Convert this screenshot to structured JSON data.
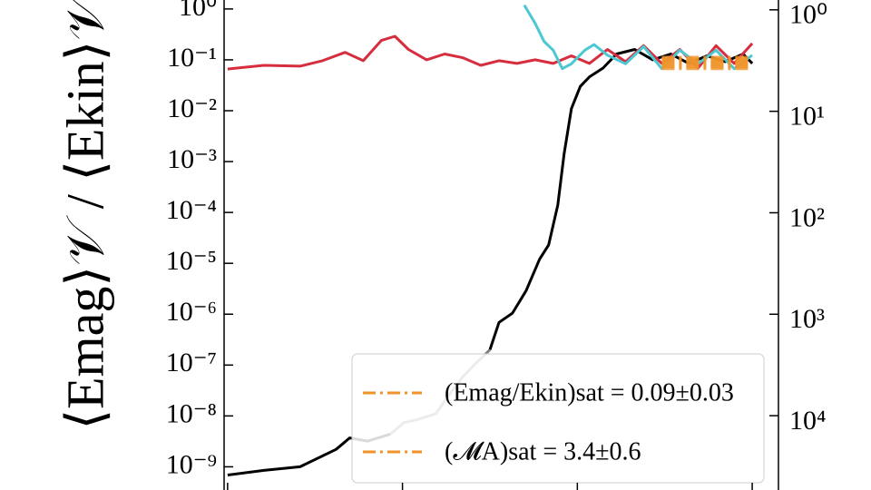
{
  "chart_data": {
    "type": "line",
    "ylabel": "⟨Emag⟩𝒱 / ⟨Ekin⟩𝒱",
    "xlim": [
      -0.02,
      3.15
    ],
    "xticks": [
      0,
      1,
      2,
      3
    ],
    "ylim": [
      3.5e-10,
      1.5
    ],
    "ylog": true,
    "yticks": [
      {
        "value": 1,
        "label": "10⁰"
      },
      {
        "value": 0.1,
        "label": "10⁻¹"
      },
      {
        "value": 0.01,
        "label": "10⁻²"
      },
      {
        "value": 0.001,
        "label": "10⁻³"
      },
      {
        "value": 0.0001,
        "label": "10⁻⁴"
      },
      {
        "value": 1e-05,
        "label": "10⁻⁵"
      },
      {
        "value": 1e-06,
        "label": "10⁻⁶"
      },
      {
        "value": 1e-07,
        "label": "10⁻⁷"
      },
      {
        "value": 1e-08,
        "label": "10⁻⁸"
      },
      {
        "value": 1e-09,
        "label": "10⁻⁹"
      }
    ],
    "y2lim": [
      0.8,
      54000
    ],
    "y2log": true,
    "y2_inverted": true,
    "y2ticks": [
      {
        "value": 1,
        "label": "10⁰"
      },
      {
        "value": 10,
        "label": "10¹"
      },
      {
        "value": 100,
        "label": "10²"
      },
      {
        "value": 1000,
        "label": "10³"
      },
      {
        "value": 10000,
        "label": "10⁴"
      }
    ],
    "series": [
      {
        "color": "#000000",
        "x": [
          0,
          0.207,
          0.414,
          0.621,
          0.698,
          0.802,
          0.931,
          1.009,
          1.086,
          1.19,
          1.267,
          1.345,
          1.422,
          1.5,
          1.552,
          1.629,
          1.707,
          1.784,
          1.836,
          1.888,
          1.924,
          1.966,
          2.017,
          2.069,
          2.147,
          2.224,
          2.328,
          2.431,
          2.534,
          2.638,
          2.741,
          2.845,
          2.948,
          3.0
        ],
        "values": [
          6.9e-10,
          8.5e-10,
          1e-09,
          2.2e-09,
          3.7e-09,
          3.2e-09,
          4.4e-09,
          null,
          null,
          null,
          null,
          null,
          null,
          2e-07,
          6.9e-07,
          1.05e-06,
          2.9e-06,
          1.2e-05,
          2.3e-05,
          0.00014,
          0.0014,
          0.011,
          0.03,
          0.046,
          0.069,
          0.13,
          0.16,
          0.1,
          0.13,
          0.085,
          0.12,
          0.092,
          0.13,
          0.085
        ]
      },
      {
        "color": "#808080",
        "x": [
          0.931,
          1.009,
          1.086,
          1.19,
          1.267,
          1.345,
          1.422,
          1.5
        ],
        "values": [
          4.4e-09,
          7.4e-09,
          8.5e-09,
          1.1e-08,
          2.6e-08,
          5.9e-08,
          1.1e-07,
          2e-07
        ]
      },
      {
        "color": "#d62d3f",
        "x": [
          0,
          0.207,
          0.414,
          0.543,
          0.672,
          0.776,
          0.879,
          0.957,
          1.034,
          1.138,
          1.241,
          1.345,
          1.448,
          1.552,
          1.655,
          1.759,
          1.862,
          1.966,
          2.069,
          2.172,
          2.276,
          2.379,
          2.483,
          2.586,
          2.69,
          2.793,
          2.897,
          3.0
        ],
        "values": [
          0.066,
          0.078,
          0.075,
          0.096,
          0.14,
          0.096,
          0.24,
          0.29,
          0.16,
          0.1,
          0.13,
          0.11,
          0.078,
          0.096,
          0.085,
          0.1,
          0.085,
          0.12,
          0.085,
          0.16,
          0.092,
          0.19,
          0.085,
          0.16,
          0.069,
          0.19,
          0.085,
          0.21
        ]
      },
      {
        "color": "#4cc8d2",
        "axis": "y2",
        "x": [
          1.697,
          1.759,
          1.81,
          1.862,
          1.914,
          1.966,
          2.043,
          2.095,
          2.172,
          2.276,
          2.379,
          2.483,
          2.586,
          2.69,
          2.793,
          2.897,
          3.0
        ],
        "values": [
          0.9,
          1.36,
          2.05,
          2.5,
          3.8,
          3.4,
          2.5,
          2.2,
          2.8,
          3.4,
          2.3,
          3.8,
          2.5,
          3.4,
          2.5,
          3.8,
          2.8
        ]
      },
      {
        "name": "(Emag/Ekin)sat = 0.09±0.03",
        "color": "#f0932b",
        "dash": true,
        "x": [
          2.483,
          3.0
        ],
        "values": [
          0.09,
          0.09
        ]
      },
      {
        "name": "(𝓜A)sat = 3.4±0.6",
        "color": "#f0932b",
        "dash": true,
        "axis": "y2",
        "x": [
          2.483,
          3.0
        ],
        "values": [
          3.4,
          3.4
        ]
      }
    ]
  }
}
